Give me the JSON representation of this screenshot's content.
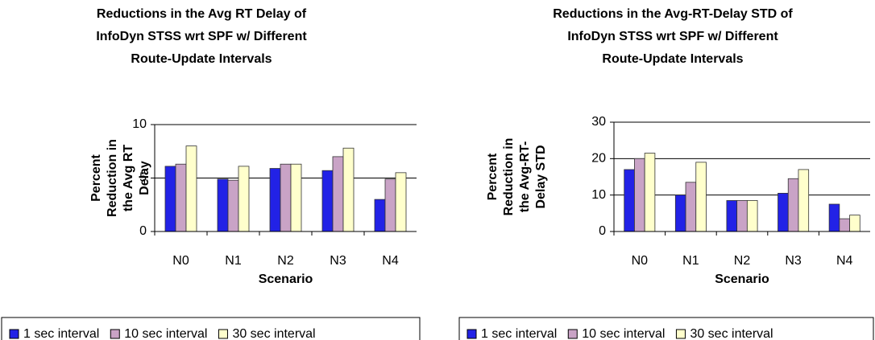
{
  "chart_data": [
    {
      "type": "bar",
      "title": [
        "Reductions in the Avg RT Delay of",
        "InfoDyn STSS wrt SPF w/ Different",
        "Route-Update Intervals"
      ],
      "ylabel": [
        "Percent",
        "Reduction in",
        "the Avg RT",
        "Delay"
      ],
      "xlabel": "Scenario",
      "categories": [
        "N0",
        "N1",
        "N2",
        "N3",
        "N4"
      ],
      "series": [
        {
          "name": "1 sec interval",
          "color": "#2222e6",
          "values": [
            6.1,
            4.9,
            5.9,
            5.7,
            3.0
          ]
        },
        {
          "name": "10 sec interval",
          "color": "#c9a3c6",
          "values": [
            6.3,
            4.8,
            6.3,
            7.0,
            4.9
          ]
        },
        {
          "name": "30 sec interval",
          "color": "#ffffcc",
          "values": [
            8.0,
            6.1,
            6.3,
            7.8,
            5.5
          ]
        }
      ],
      "ylim": [
        0,
        10
      ],
      "yticks": [
        0,
        5,
        10
      ],
      "grid": true,
      "legend": "bottom"
    },
    {
      "type": "bar",
      "title": [
        "Reductions in the Avg-RT-Delay STD of",
        "InfoDyn STSS wrt SPF w/ Different",
        "Route-Update Intervals"
      ],
      "ylabel": [
        "Percent",
        "Reduction in",
        "the Avg-RT-",
        "Delay STD"
      ],
      "xlabel": "Scenario",
      "categories": [
        "N0",
        "N1",
        "N2",
        "N3",
        "N4"
      ],
      "series": [
        {
          "name": "1 sec interval",
          "color": "#2222e6",
          "values": [
            17,
            10,
            8.5,
            10.5,
            7.5
          ]
        },
        {
          "name": "10 sec interval",
          "color": "#c9a3c6",
          "values": [
            20,
            13.5,
            8.5,
            14.5,
            3.5
          ]
        },
        {
          "name": "30 sec interval",
          "color": "#ffffcc",
          "values": [
            21.5,
            19,
            8.5,
            17,
            4.5
          ]
        }
      ],
      "ylim": [
        0,
        30
      ],
      "yticks": [
        0,
        10,
        20,
        30
      ],
      "grid": true,
      "legend": "bottom"
    }
  ]
}
